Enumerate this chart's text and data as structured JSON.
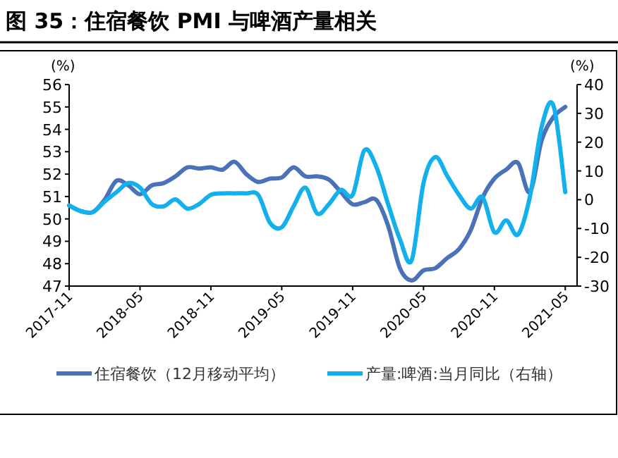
{
  "chart_data": {
    "type": "line",
    "title": "图 35：住宿餐饮 PMI 与啤酒产量相关",
    "x": [
      "2017-11",
      "2017-12",
      "2018-01",
      "2018-02",
      "2018-03",
      "2018-04",
      "2018-05",
      "2018-06",
      "2018-07",
      "2018-08",
      "2018-09",
      "2018-10",
      "2018-11",
      "2018-12",
      "2019-01",
      "2019-02",
      "2019-03",
      "2019-04",
      "2019-05",
      "2019-06",
      "2019-07",
      "2019-08",
      "2019-09",
      "2019-10",
      "2019-11",
      "2019-12",
      "2020-01",
      "2020-02",
      "2020-03",
      "2020-04",
      "2020-05",
      "2020-06",
      "2020-07",
      "2020-08",
      "2020-09",
      "2020-10",
      "2020-11",
      "2020-12",
      "2021-01",
      "2021-02",
      "2021-03",
      "2021-04",
      "2021-05"
    ],
    "series": [
      {
        "name": "住宿餐饮（12月移动平均）",
        "color": "#4a72b8",
        "values": [
          50.6,
          50.35,
          50.3,
          50.85,
          51.7,
          51.5,
          51.1,
          51.5,
          51.6,
          51.9,
          52.3,
          52.25,
          52.3,
          52.2,
          52.55,
          52.0,
          51.65,
          51.8,
          51.85,
          52.3,
          51.9,
          51.9,
          51.75,
          51.2,
          50.65,
          50.75,
          50.85,
          49.7,
          47.8,
          47.25,
          47.7,
          47.8,
          48.25,
          48.65,
          49.5,
          50.95,
          51.8,
          52.2,
          52.5,
          51.2,
          53.5,
          54.55,
          55.0
        ]
      },
      {
        "name": "产量:啤酒:当月同比（右轴）",
        "color": "#12b0ec",
        "axis": "y2",
        "values": [
          -2.0,
          -4.0,
          -4.3,
          -0.7,
          2.6,
          5.8,
          4.2,
          -1.5,
          -2.3,
          0.1,
          -3.1,
          -1.5,
          1.7,
          2.2,
          2.2,
          2.2,
          1.7,
          -8.0,
          -9.6,
          -2.3,
          4.2,
          -4.8,
          -1.5,
          3.4,
          1.7,
          17.2,
          11.5,
          -1.5,
          -13.7,
          -21.0,
          5.8,
          14.8,
          8.3,
          1.7,
          -3.1,
          0.9,
          -11.3,
          -7.2,
          -12.1,
          0.9,
          25.3,
          32.7,
          2.6
        ]
      }
    ],
    "xlim": [
      "2017-11",
      "2021-06"
    ],
    "xticks": [
      "2017-11",
      "2018-05",
      "2018-11",
      "2019-05",
      "2019-11",
      "2020-05",
      "2020-11",
      "2021-05"
    ],
    "ylabel": "(%)",
    "y2label": "(%)",
    "ylim": [
      47,
      56
    ],
    "yticks": [
      47,
      48,
      49,
      50,
      51,
      52,
      53,
      54,
      55,
      56
    ],
    "y2lim": [
      -30,
      40
    ],
    "y2ticks": [
      -30,
      -20,
      -10,
      0,
      10,
      20,
      30,
      40
    ],
    "legend": "bottom",
    "grid": false,
    "marker": "none",
    "line_style": "solid"
  }
}
